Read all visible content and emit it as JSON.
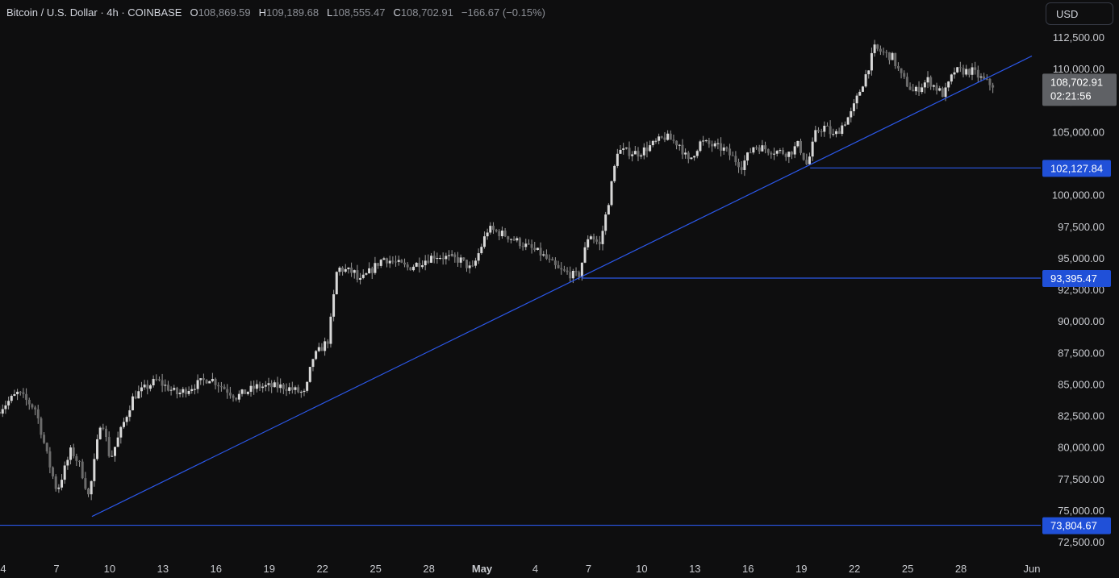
{
  "header": {
    "symbol": "Bitcoin / U.S. Dollar · 4h · COINBASE",
    "o_label": "O",
    "o_value": "108,869.59",
    "h_label": "H",
    "h_value": "109,189.68",
    "l_label": "L",
    "l_value": "108,555.47",
    "c_label": "C",
    "c_value": "108,702.91",
    "change": "−166.67 (−0.15%)"
  },
  "currency_button": "USD",
  "colors": {
    "background": "#0e0e0f",
    "candle": "#d8d8d8",
    "candle_wick": "#9a9a9a",
    "line": "#2b57e8",
    "price_tag": "#5f6165",
    "level_tag": "#2050d8",
    "axis_text": "#c7c9ce"
  },
  "chart_data": {
    "type": "candlestick",
    "title": "Bitcoin / U.S. Dollar · 4h · COINBASE",
    "ylim": [
      71250,
      114000
    ],
    "y_ticks": [
      "112,500.00",
      "110,000.00",
      "107,500.00",
      "105,000.00",
      "102,500.00",
      "100,000.00",
      "97,500.00",
      "95,000.00",
      "92,500.00",
      "90,000.00",
      "87,500.00",
      "85,000.00",
      "82,500.00",
      "80,000.00",
      "77,500.00",
      "75,000.00",
      "72,500.00"
    ],
    "x_ticks": [
      "4",
      "7",
      "10",
      "13",
      "16",
      "19",
      "22",
      "25",
      "28",
      "May",
      "4",
      "7",
      "10",
      "13",
      "16",
      "19",
      "22",
      "25",
      "28",
      "Jun"
    ],
    "x_tick_days": [
      4,
      7,
      10,
      13,
      16,
      19,
      22,
      25,
      28,
      31,
      34,
      37,
      40,
      43,
      46,
      49,
      52,
      55,
      58,
      62
    ],
    "x_range_days": [
      3.8,
      62
    ],
    "key_prices": [
      {
        "day": 3.8,
        "price": 82800
      },
      {
        "day": 5,
        "price": 84300
      },
      {
        "day": 6,
        "price": 83000
      },
      {
        "day": 6.7,
        "price": 79000
      },
      {
        "day": 7.2,
        "price": 76500
      },
      {
        "day": 8,
        "price": 79800
      },
      {
        "day": 8.5,
        "price": 78500
      },
      {
        "day": 9,
        "price": 76000
      },
      {
        "day": 9.7,
        "price": 82500
      },
      {
        "day": 10.2,
        "price": 79000
      },
      {
        "day": 11.5,
        "price": 84000
      },
      {
        "day": 12.8,
        "price": 85300
      },
      {
        "day": 14,
        "price": 84200
      },
      {
        "day": 15.8,
        "price": 85500
      },
      {
        "day": 17.3,
        "price": 84000
      },
      {
        "day": 18.5,
        "price": 84800
      },
      {
        "day": 20,
        "price": 84800
      },
      {
        "day": 21.2,
        "price": 84200
      },
      {
        "day": 21.6,
        "price": 87000
      },
      {
        "day": 22.5,
        "price": 88500
      },
      {
        "day": 23,
        "price": 94200
      },
      {
        "day": 24,
        "price": 93800
      },
      {
        "day": 24.2,
        "price": 93000
      },
      {
        "day": 25.6,
        "price": 95000
      },
      {
        "day": 27,
        "price": 94200
      },
      {
        "day": 28.5,
        "price": 95200
      },
      {
        "day": 30,
        "price": 94800
      },
      {
        "day": 30.6,
        "price": 94000
      },
      {
        "day": 31.5,
        "price": 97300
      },
      {
        "day": 32.5,
        "price": 96800
      },
      {
        "day": 34.5,
        "price": 95300
      },
      {
        "day": 35.5,
        "price": 94000
      },
      {
        "day": 36.6,
        "price": 93500
      },
      {
        "day": 37.2,
        "price": 97000
      },
      {
        "day": 37.8,
        "price": 96000
      },
      {
        "day": 38.3,
        "price": 99500
      },
      {
        "day": 38.8,
        "price": 103500
      },
      {
        "day": 40,
        "price": 103300
      },
      {
        "day": 41.5,
        "price": 104600
      },
      {
        "day": 42.3,
        "price": 104000
      },
      {
        "day": 42.8,
        "price": 102600
      },
      {
        "day": 43.5,
        "price": 104200
      },
      {
        "day": 44.8,
        "price": 103600
      },
      {
        "day": 45.8,
        "price": 102300
      },
      {
        "day": 46.5,
        "price": 103900
      },
      {
        "day": 47.5,
        "price": 103500
      },
      {
        "day": 48.5,
        "price": 103300
      },
      {
        "day": 49,
        "price": 104000
      },
      {
        "day": 49.5,
        "price": 102300
      },
      {
        "day": 50,
        "price": 105000
      },
      {
        "day": 50.5,
        "price": 105400
      },
      {
        "day": 51,
        "price": 104600
      },
      {
        "day": 52,
        "price": 106500
      },
      {
        "day": 52.8,
        "price": 109500
      },
      {
        "day": 53.3,
        "price": 111600
      },
      {
        "day": 54.3,
        "price": 110900
      },
      {
        "day": 54.8,
        "price": 109400
      },
      {
        "day": 55.5,
        "price": 108100
      },
      {
        "day": 56.3,
        "price": 109100
      },
      {
        "day": 57.2,
        "price": 107900
      },
      {
        "day": 57.8,
        "price": 109800
      },
      {
        "day": 58.8,
        "price": 109800
      },
      {
        "day": 59.4,
        "price": 109100
      },
      {
        "day": 59.9,
        "price": 108700
      }
    ],
    "trendline": {
      "from": {
        "day": 9,
        "price": 74500
      },
      "to": {
        "day": 62,
        "price": 111000
      }
    },
    "levels": [
      {
        "from_day": 49.5,
        "price": 102127.84,
        "label": "102,127.84"
      },
      {
        "from_day": 36.6,
        "price": 93395.47,
        "label": "93,395.47"
      },
      {
        "from_day": 3.8,
        "price": 73804.67,
        "label": "73,804.67"
      }
    ],
    "last_price": {
      "price": 108702.91,
      "label": "108,702.91",
      "countdown": "02:21:56"
    }
  }
}
